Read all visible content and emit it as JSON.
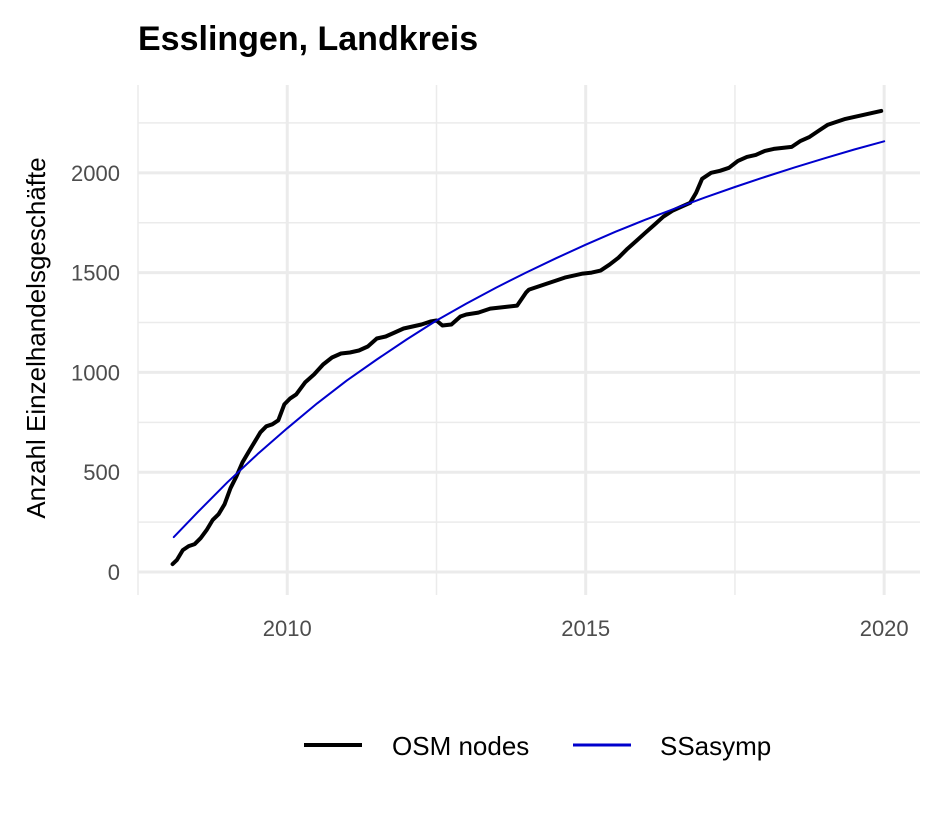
{
  "chart_data": {
    "type": "line",
    "title": "Esslingen, Landkreis",
    "xlabel": "",
    "ylabel": "Anzahl Einzelhandelsgeschäfte",
    "xlim": [
      2007.5,
      2020.6
    ],
    "ylim": [
      -115,
      2440
    ],
    "x_ticks": [
      2010,
      2015,
      2020
    ],
    "x_tick_labels": [
      "2010",
      "2015",
      "2020"
    ],
    "y_ticks": [
      0,
      500,
      1000,
      1500,
      2000
    ],
    "y_tick_labels": [
      "0",
      "500",
      "1000",
      "1500",
      "2000"
    ],
    "grid": true,
    "legend_position": "bottom",
    "series": [
      {
        "name": "OSM nodes",
        "color": "#000000",
        "x": [
          2008.08,
          2008.15,
          2008.25,
          2008.35,
          2008.45,
          2008.55,
          2008.65,
          2008.75,
          2008.85,
          2008.95,
          2009.05,
          2009.15,
          2009.25,
          2009.35,
          2009.45,
          2009.55,
          2009.65,
          2009.75,
          2009.85,
          2009.95,
          2010.05,
          2010.15,
          2010.3,
          2010.45,
          2010.6,
          2010.75,
          2010.9,
          2011.05,
          2011.2,
          2011.35,
          2011.5,
          2011.65,
          2011.8,
          2011.95,
          2012.1,
          2012.25,
          2012.4,
          2012.5,
          2012.6,
          2012.75,
          2012.9,
          2013.0,
          2013.2,
          2013.4,
          2013.55,
          2013.7,
          2013.85,
          2014.0,
          2014.05,
          2014.2,
          2014.35,
          2014.5,
          2014.65,
          2014.8,
          2014.95,
          2015.1,
          2015.25,
          2015.4,
          2015.55,
          2015.7,
          2015.85,
          2016.0,
          2016.15,
          2016.3,
          2016.45,
          2016.6,
          2016.75,
          2016.85,
          2016.95,
          2017.1,
          2017.25,
          2017.4,
          2017.55,
          2017.7,
          2017.85,
          2018.0,
          2018.15,
          2018.3,
          2018.45,
          2018.6,
          2018.75,
          2018.9,
          2019.05,
          2019.2,
          2019.35,
          2019.5,
          2019.65,
          2019.8,
          2019.95
        ],
        "values": [
          40,
          60,
          110,
          130,
          140,
          170,
          210,
          260,
          290,
          340,
          420,
          480,
          550,
          600,
          650,
          700,
          730,
          740,
          760,
          840,
          870,
          890,
          950,
          990,
          1040,
          1075,
          1095,
          1100,
          1110,
          1130,
          1170,
          1180,
          1200,
          1220,
          1230,
          1240,
          1255,
          1260,
          1235,
          1240,
          1280,
          1290,
          1300,
          1320,
          1325,
          1330,
          1335,
          1400,
          1415,
          1430,
          1445,
          1460,
          1475,
          1485,
          1495,
          1500,
          1510,
          1540,
          1575,
          1620,
          1660,
          1700,
          1740,
          1780,
          1810,
          1830,
          1850,
          1900,
          1970,
          2000,
          2010,
          2025,
          2060,
          2080,
          2090,
          2110,
          2120,
          2125,
          2130,
          2160,
          2180,
          2210,
          2240,
          2255,
          2270,
          2280,
          2290,
          2300,
          2310
        ]
      },
      {
        "name": "SSasymp",
        "color": "#0000cd",
        "x": [
          2008.1,
          2008.5,
          2009.0,
          2009.5,
          2010.0,
          2010.5,
          2011.0,
          2011.5,
          2012.0,
          2012.5,
          2013.0,
          2013.5,
          2014.0,
          2014.5,
          2015.0,
          2015.5,
          2016.0,
          2016.5,
          2017.0,
          2017.5,
          2018.0,
          2018.5,
          2019.0,
          2019.5,
          2020.0
        ],
        "values": [
          175,
          300,
          450,
          590,
          720,
          845,
          960,
          1065,
          1165,
          1260,
          1345,
          1425,
          1500,
          1572,
          1640,
          1705,
          1765,
          1822,
          1877,
          1929,
          1979,
          2027,
          2073,
          2117,
          2158
        ]
      }
    ]
  }
}
